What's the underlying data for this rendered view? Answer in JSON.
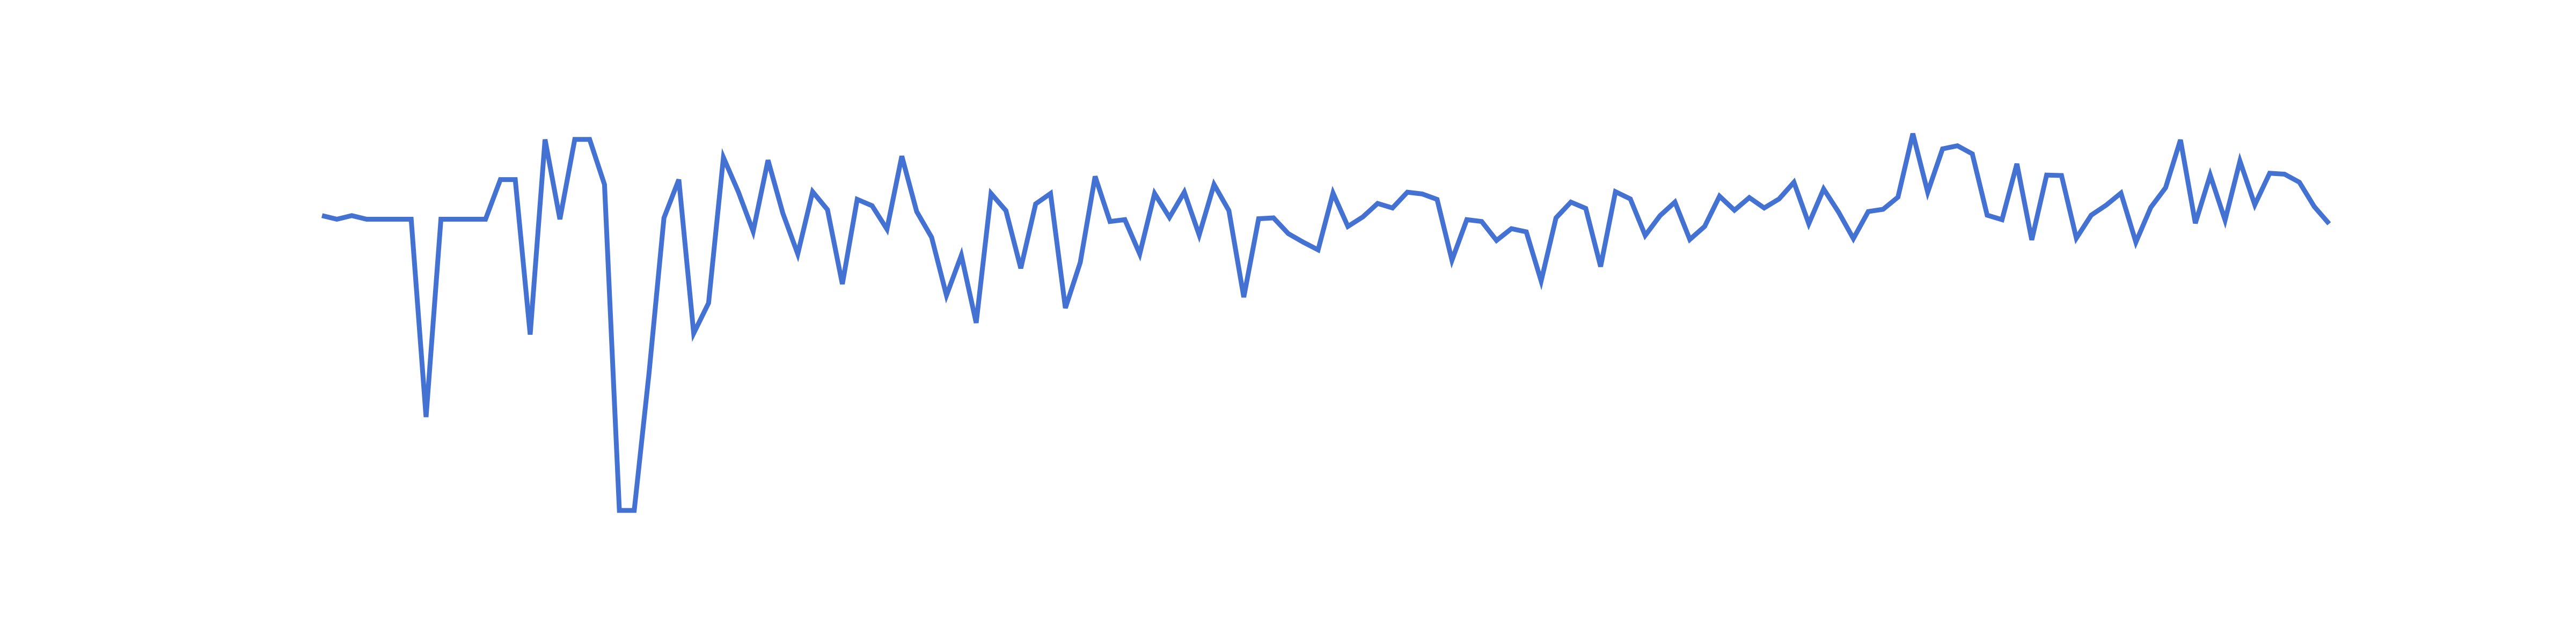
{
  "chart_data": {
    "type": "line",
    "grid": false,
    "legend": "none",
    "axes_visible": false,
    "colors": {
      "line": "#4472d2",
      "background": "#ffffff"
    },
    "ylim": [
      0,
      1
    ],
    "series": [
      {
        "color": "#4472d2",
        "values": [
          0.736,
          0.728,
          0.736,
          0.728,
          0.728,
          0.728,
          0.728,
          0.289,
          0.728,
          0.728,
          0.728,
          0.728,
          0.816,
          0.816,
          0.472,
          0.905,
          0.728,
          0.905,
          0.905,
          0.805,
          0.082,
          0.082,
          0.388,
          0.731,
          0.816,
          0.475,
          0.542,
          0.865,
          0.789,
          0.701,
          0.859,
          0.741,
          0.651,
          0.789,
          0.749,
          0.584,
          0.772,
          0.758,
          0.706,
          0.868,
          0.745,
          0.688,
          0.559,
          0.648,
          0.498,
          0.785,
          0.747,
          0.619,
          0.762,
          0.785,
          0.531,
          0.632,
          0.823,
          0.723,
          0.727,
          0.651,
          0.785,
          0.732,
          0.788,
          0.693,
          0.805,
          0.747,
          0.555,
          0.729,
          0.731,
          0.696,
          0.677,
          0.66,
          0.786,
          0.712,
          0.733,
          0.763,
          0.753,
          0.788,
          0.784,
          0.772,
          0.637,
          0.727,
          0.723,
          0.681,
          0.707,
          0.7,
          0.591,
          0.731,
          0.766,
          0.752,
          0.623,
          0.789,
          0.773,
          0.692,
          0.736,
          0.766,
          0.683,
          0.712,
          0.779,
          0.748,
          0.776,
          0.753,
          0.773,
          0.81,
          0.718,
          0.795,
          0.744,
          0.685,
          0.745,
          0.75,
          0.777,
          0.918,
          0.788,
          0.884,
          0.891,
          0.873,
          0.737,
          0.727,
          0.851,
          0.682,
          0.826,
          0.825,
          0.686,
          0.737,
          0.759,
          0.786,
          0.677,
          0.754,
          0.798,
          0.904,
          0.719,
          0.826,
          0.726,
          0.857,
          0.76,
          0.83,
          0.828,
          0.81,
          0.756,
          0.718
        ]
      }
    ]
  }
}
